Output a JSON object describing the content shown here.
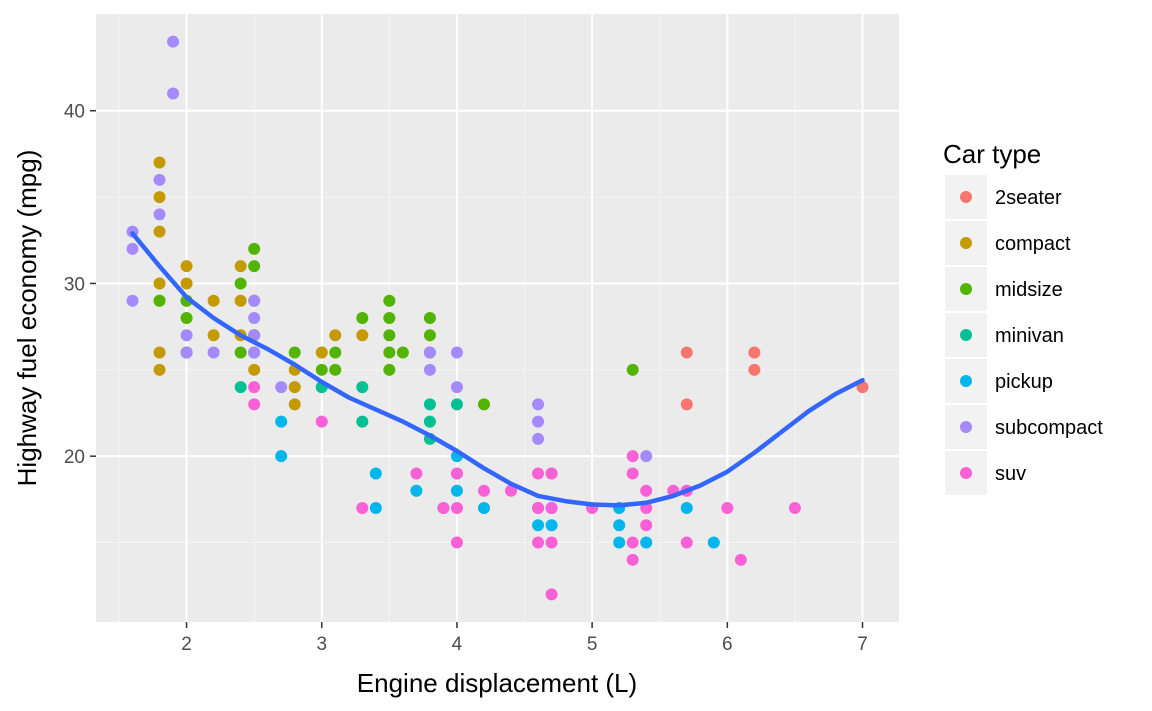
{
  "chart_data": {
    "type": "scatter",
    "xlabel": "Engine displacement (L)",
    "ylabel": "Highway fuel economy (mpg)",
    "xlim": [
      1.33,
      7.27
    ],
    "ylim": [
      10.4,
      45.6
    ],
    "x_major_ticks": [
      2,
      3,
      4,
      5,
      6,
      7
    ],
    "y_major_ticks": [
      20,
      30,
      40
    ],
    "x_minor_ticks": [
      1.5,
      2.5,
      3.5,
      4.5,
      5.5,
      6.5
    ],
    "y_minor_ticks": [
      15,
      25,
      35
    ],
    "grid": true,
    "legend": {
      "title": "Car type",
      "position": "right"
    },
    "series": [
      {
        "name": "2seater",
        "color": "#F8766D",
        "points": [
          [
            5.7,
            26
          ],
          [
            5.7,
            23
          ],
          [
            6.2,
            26
          ],
          [
            6.2,
            25
          ],
          [
            7.0,
            24
          ]
        ]
      },
      {
        "name": "compact",
        "color": "#C49A00",
        "points": [
          [
            1.8,
            37
          ],
          [
            1.8,
            35
          ],
          [
            1.8,
            33
          ],
          [
            1.8,
            30
          ],
          [
            1.8,
            29
          ],
          [
            1.8,
            26
          ],
          [
            1.8,
            25
          ],
          [
            2.0,
            31
          ],
          [
            2.0,
            30
          ],
          [
            2.0,
            29
          ],
          [
            2.0,
            26
          ],
          [
            2.2,
            29
          ],
          [
            2.2,
            27
          ],
          [
            2.4,
            31
          ],
          [
            2.4,
            29
          ],
          [
            2.4,
            27
          ],
          [
            2.5,
            29
          ],
          [
            2.5,
            27
          ],
          [
            2.5,
            25
          ],
          [
            2.8,
            25
          ],
          [
            2.8,
            24
          ],
          [
            2.8,
            23
          ],
          [
            3.0,
            26
          ],
          [
            3.1,
            27
          ],
          [
            3.3,
            27
          ]
        ]
      },
      {
        "name": "midsize",
        "color": "#53B400",
        "points": [
          [
            1.8,
            29
          ],
          [
            2.0,
            29
          ],
          [
            2.0,
            28
          ],
          [
            2.0,
            26
          ],
          [
            2.4,
            30
          ],
          [
            2.4,
            26
          ],
          [
            2.5,
            32
          ],
          [
            2.5,
            31
          ],
          [
            2.5,
            27
          ],
          [
            2.5,
            26
          ],
          [
            2.8,
            26
          ],
          [
            3.0,
            25
          ],
          [
            3.1,
            26
          ],
          [
            3.1,
            25
          ],
          [
            3.3,
            28
          ],
          [
            3.5,
            29
          ],
          [
            3.5,
            28
          ],
          [
            3.5,
            27
          ],
          [
            3.5,
            26
          ],
          [
            3.5,
            25
          ],
          [
            3.6,
            26
          ],
          [
            3.8,
            28
          ],
          [
            3.8,
            27
          ],
          [
            3.8,
            26
          ],
          [
            4.2,
            23
          ],
          [
            5.3,
            25
          ]
        ]
      },
      {
        "name": "minivan",
        "color": "#00C094",
        "points": [
          [
            2.4,
            24
          ],
          [
            3.0,
            24
          ],
          [
            3.3,
            24
          ],
          [
            3.3,
            22
          ],
          [
            3.8,
            23
          ],
          [
            3.8,
            22
          ],
          [
            3.8,
            21
          ],
          [
            4.0,
            23
          ]
        ]
      },
      {
        "name": "pickup",
        "color": "#00B6EB",
        "points": [
          [
            2.7,
            22
          ],
          [
            2.7,
            20
          ],
          [
            3.4,
            19
          ],
          [
            3.4,
            17
          ],
          [
            3.7,
            18
          ],
          [
            3.9,
            17
          ],
          [
            4.0,
            20
          ],
          [
            4.0,
            19
          ],
          [
            4.0,
            18
          ],
          [
            4.2,
            17
          ],
          [
            4.6,
            17
          ],
          [
            4.6,
            16
          ],
          [
            4.7,
            19
          ],
          [
            4.7,
            17
          ],
          [
            4.7,
            16
          ],
          [
            5.2,
            17
          ],
          [
            5.2,
            16
          ],
          [
            5.2,
            15
          ],
          [
            5.4,
            15
          ],
          [
            5.7,
            17
          ],
          [
            5.9,
            15
          ]
        ]
      },
      {
        "name": "subcompact",
        "color": "#A58AFF",
        "points": [
          [
            1.6,
            33
          ],
          [
            1.6,
            32
          ],
          [
            1.6,
            29
          ],
          [
            1.8,
            36
          ],
          [
            1.8,
            34
          ],
          [
            1.9,
            44
          ],
          [
            1.9,
            41
          ],
          [
            2.0,
            27
          ],
          [
            2.0,
            26
          ],
          [
            2.2,
            26
          ],
          [
            2.5,
            29
          ],
          [
            2.5,
            28
          ],
          [
            2.5,
            27
          ],
          [
            2.5,
            26
          ],
          [
            2.7,
            24
          ],
          [
            3.8,
            26
          ],
          [
            3.8,
            25
          ],
          [
            4.0,
            26
          ],
          [
            4.0,
            24
          ],
          [
            4.6,
            23
          ],
          [
            4.6,
            22
          ],
          [
            4.6,
            21
          ],
          [
            5.4,
            20
          ]
        ]
      },
      {
        "name": "suv",
        "color": "#FB61D7",
        "points": [
          [
            2.5,
            24
          ],
          [
            2.5,
            23
          ],
          [
            3.0,
            22
          ],
          [
            3.3,
            17
          ],
          [
            3.7,
            19
          ],
          [
            3.9,
            17
          ],
          [
            4.0,
            19
          ],
          [
            4.0,
            17
          ],
          [
            4.0,
            15
          ],
          [
            4.2,
            18
          ],
          [
            4.4,
            18
          ],
          [
            4.6,
            19
          ],
          [
            4.6,
            17
          ],
          [
            4.6,
            15
          ],
          [
            4.7,
            19
          ],
          [
            4.7,
            17
          ],
          [
            4.7,
            15
          ],
          [
            4.7,
            12
          ],
          [
            5.0,
            17
          ],
          [
            5.3,
            20
          ],
          [
            5.3,
            19
          ],
          [
            5.3,
            15
          ],
          [
            5.3,
            14
          ],
          [
            5.4,
            18
          ],
          [
            5.4,
            17
          ],
          [
            5.4,
            16
          ],
          [
            5.6,
            18
          ],
          [
            5.7,
            18
          ],
          [
            5.7,
            15
          ],
          [
            6.0,
            17
          ],
          [
            6.1,
            14
          ],
          [
            6.5,
            17
          ]
        ]
      }
    ],
    "smooth": {
      "color": "#3366FF",
      "points": [
        [
          1.6,
          32.9
        ],
        [
          1.8,
          31.0
        ],
        [
          2.0,
          29.2
        ],
        [
          2.2,
          28.0
        ],
        [
          2.4,
          27.0
        ],
        [
          2.6,
          26.2
        ],
        [
          2.8,
          25.3
        ],
        [
          3.0,
          24.3
        ],
        [
          3.2,
          23.4
        ],
        [
          3.4,
          22.7
        ],
        [
          3.6,
          22.0
        ],
        [
          3.8,
          21.2
        ],
        [
          4.0,
          20.3
        ],
        [
          4.2,
          19.3
        ],
        [
          4.4,
          18.4
        ],
        [
          4.6,
          17.7
        ],
        [
          4.8,
          17.4
        ],
        [
          5.0,
          17.2
        ],
        [
          5.2,
          17.15
        ],
        [
          5.4,
          17.3
        ],
        [
          5.6,
          17.7
        ],
        [
          5.8,
          18.3
        ],
        [
          6.0,
          19.1
        ],
        [
          6.2,
          20.2
        ],
        [
          6.4,
          21.4
        ],
        [
          6.6,
          22.6
        ],
        [
          6.8,
          23.6
        ],
        [
          7.0,
          24.4
        ]
      ]
    }
  }
}
